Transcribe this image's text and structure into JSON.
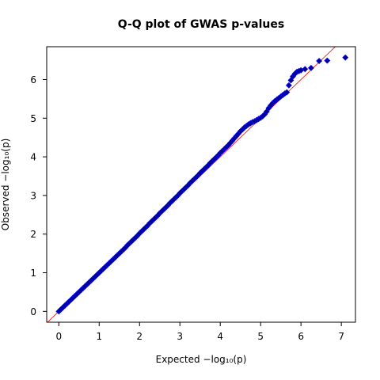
{
  "chart_data": {
    "type": "scatter",
    "title": "Q-Q plot of GWAS p-values",
    "xlabel": "Expected  −log₁₀(p)",
    "ylabel": "Observed  −log₁₀(p)",
    "xlim": [
      -0.3,
      7.35
    ],
    "ylim": [
      -0.28,
      6.85
    ],
    "xticks": [
      "0",
      "1",
      "2",
      "3",
      "4",
      "5",
      "6",
      "7"
    ],
    "yticks": [
      "0",
      "1",
      "2",
      "3",
      "4",
      "5",
      "6"
    ],
    "reference_line": {
      "slope": 1,
      "intercept": 0,
      "color": "#ff0000"
    },
    "marker": {
      "shape": "diamond",
      "fill": "#00008b",
      "edge": "#0000ff"
    },
    "grid": false,
    "series": [
      {
        "x": [
          0.0,
          0.05,
          0.1,
          0.15,
          0.2,
          0.25,
          0.3,
          0.35,
          0.4,
          0.45,
          0.5,
          0.55,
          0.6,
          0.65,
          0.7,
          0.75,
          0.8,
          0.85,
          0.9,
          0.95,
          1.0,
          1.05,
          1.1,
          1.15,
          1.2,
          1.25,
          1.3,
          1.35,
          1.4,
          1.45,
          1.5,
          1.55,
          1.6,
          1.65,
          1.7,
          1.75,
          1.8,
          1.85,
          1.9,
          1.95,
          2.0,
          2.05,
          2.1,
          2.15,
          2.2,
          2.25,
          2.3,
          2.35,
          2.4,
          2.45,
          2.5,
          2.55,
          2.6,
          2.65,
          2.7,
          2.75,
          2.8,
          2.85,
          2.9,
          2.95,
          3.0,
          3.05,
          3.1,
          3.15,
          3.2,
          3.25,
          3.3,
          3.35,
          3.4,
          3.45,
          3.5,
          3.55,
          3.6,
          3.65,
          3.7,
          3.75,
          3.8,
          3.85,
          3.9,
          3.95,
          4.0,
          4.05,
          4.1,
          4.15,
          4.2,
          4.25,
          4.3,
          4.35,
          4.4,
          4.45,
          4.5,
          4.55,
          4.6,
          4.65,
          4.7,
          4.75,
          4.8,
          4.85,
          4.9,
          4.95,
          5.0,
          5.05,
          5.1,
          5.15,
          5.2,
          5.25,
          5.3,
          5.35,
          5.4,
          5.45,
          5.5,
          5.55,
          5.6,
          5.65,
          5.7,
          5.75,
          5.8,
          5.85,
          5.9,
          5.95,
          6.0,
          6.1,
          6.25,
          6.45,
          6.65,
          7.1
        ],
        "y": [
          0.0,
          0.05,
          0.1,
          0.15,
          0.2,
          0.25,
          0.3,
          0.35,
          0.4,
          0.45,
          0.5,
          0.55,
          0.6,
          0.65,
          0.7,
          0.75,
          0.8,
          0.85,
          0.9,
          0.95,
          1.0,
          1.05,
          1.1,
          1.15,
          1.2,
          1.25,
          1.3,
          1.35,
          1.4,
          1.45,
          1.5,
          1.55,
          1.6,
          1.65,
          1.71,
          1.76,
          1.81,
          1.86,
          1.91,
          1.96,
          2.02,
          2.07,
          2.12,
          2.17,
          2.22,
          2.28,
          2.33,
          2.38,
          2.43,
          2.48,
          2.54,
          2.59,
          2.64,
          2.69,
          2.74,
          2.8,
          2.85,
          2.9,
          2.95,
          3.0,
          3.06,
          3.11,
          3.16,
          3.21,
          3.26,
          3.32,
          3.37,
          3.42,
          3.47,
          3.52,
          3.58,
          3.63,
          3.68,
          3.73,
          3.78,
          3.84,
          3.89,
          3.94,
          3.99,
          4.04,
          4.1,
          4.15,
          4.2,
          4.25,
          4.3,
          4.36,
          4.42,
          4.48,
          4.54,
          4.6,
          4.66,
          4.71,
          4.76,
          4.8,
          4.84,
          4.87,
          4.9,
          4.92,
          4.95,
          4.98,
          5.01,
          5.05,
          5.1,
          5.17,
          5.26,
          5.33,
          5.39,
          5.44,
          5.48,
          5.52,
          5.56,
          5.6,
          5.64,
          5.67,
          5.85,
          5.98,
          6.08,
          6.15,
          6.2,
          6.22,
          6.24,
          6.27,
          6.3,
          6.48,
          6.49,
          6.57
        ]
      }
    ]
  }
}
